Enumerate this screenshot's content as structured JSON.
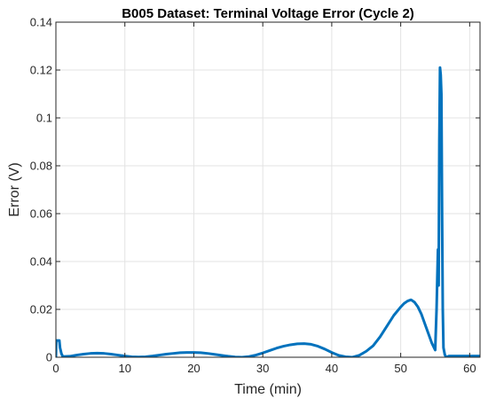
{
  "chart_data": {
    "type": "line",
    "title": "B005 Dataset: Terminal Voltage Error (Cycle 2)",
    "xlabel": "Time (min)",
    "ylabel": "Error (V)",
    "xlim": [
      0,
      61.5
    ],
    "ylim": [
      0,
      0.14
    ],
    "x_ticks": [
      0,
      10,
      20,
      30,
      40,
      50,
      60
    ],
    "y_ticks": [
      0,
      0.02,
      0.04,
      0.06,
      0.08,
      0.1,
      0.12,
      0.14
    ],
    "x_tick_labels": [
      "0",
      "10",
      "20",
      "30",
      "40",
      "50",
      "60"
    ],
    "y_tick_labels": [
      "0",
      "0.02",
      "0.04",
      "0.06",
      "0.08",
      "0.1",
      "0.12",
      "0.14"
    ],
    "grid": true,
    "line_color": "#0072BD",
    "series": [
      {
        "x": [
          0,
          0.05,
          0.1,
          0.2,
          0.4,
          0.5,
          0.6,
          0.8,
          1,
          2,
          3,
          4,
          5,
          6,
          7,
          8,
          9,
          10,
          11,
          12,
          13,
          14,
          15,
          16,
          17,
          18,
          19,
          20,
          21,
          22,
          23,
          24,
          25,
          26,
          27,
          28,
          29,
          30,
          31,
          32,
          33,
          34,
          35,
          36,
          37,
          38,
          39,
          40,
          41,
          42,
          43,
          44,
          45,
          46,
          47,
          48,
          49,
          50,
          50.5,
          51,
          51.5,
          52,
          52.5,
          53,
          53.5,
          54,
          54.5,
          55,
          55.2,
          55.4,
          55.5,
          55.6,
          55.7,
          55.8,
          55.9,
          56,
          56.1,
          56.2,
          56.4,
          56.6,
          57,
          58,
          59,
          60,
          61,
          61.5
        ],
        "y": [
          0.0,
          0.007,
          0.007,
          0.007,
          0.007,
          0.007,
          0.004,
          0.0015,
          0.0003,
          0.0004,
          0.0009,
          0.0013,
          0.0016,
          0.0017,
          0.0016,
          0.0013,
          0.0009,
          0.0005,
          0.0002,
          0.0001,
          0.0002,
          0.0005,
          0.0009,
          0.0013,
          0.0016,
          0.0019,
          0.002,
          0.002,
          0.0019,
          0.0016,
          0.0012,
          0.0008,
          0.0004,
          0.0001,
          0.0,
          0.0003,
          0.0009,
          0.0018,
          0.0028,
          0.0038,
          0.0046,
          0.0052,
          0.0056,
          0.0057,
          0.0054,
          0.0046,
          0.0034,
          0.002,
          0.0008,
          0.0002,
          0.0,
          0.0008,
          0.0025,
          0.0048,
          0.0085,
          0.013,
          0.0175,
          0.021,
          0.0225,
          0.0235,
          0.024,
          0.023,
          0.021,
          0.018,
          0.014,
          0.01,
          0.006,
          0.003,
          0.02,
          0.045,
          0.03,
          0.09,
          0.121,
          0.118,
          0.11,
          0.06,
          0.02,
          0.004,
          0.001,
          0.0,
          0.0005,
          0.0005,
          0.0005,
          0.0005,
          0.0005,
          0.0005
        ]
      }
    ]
  }
}
